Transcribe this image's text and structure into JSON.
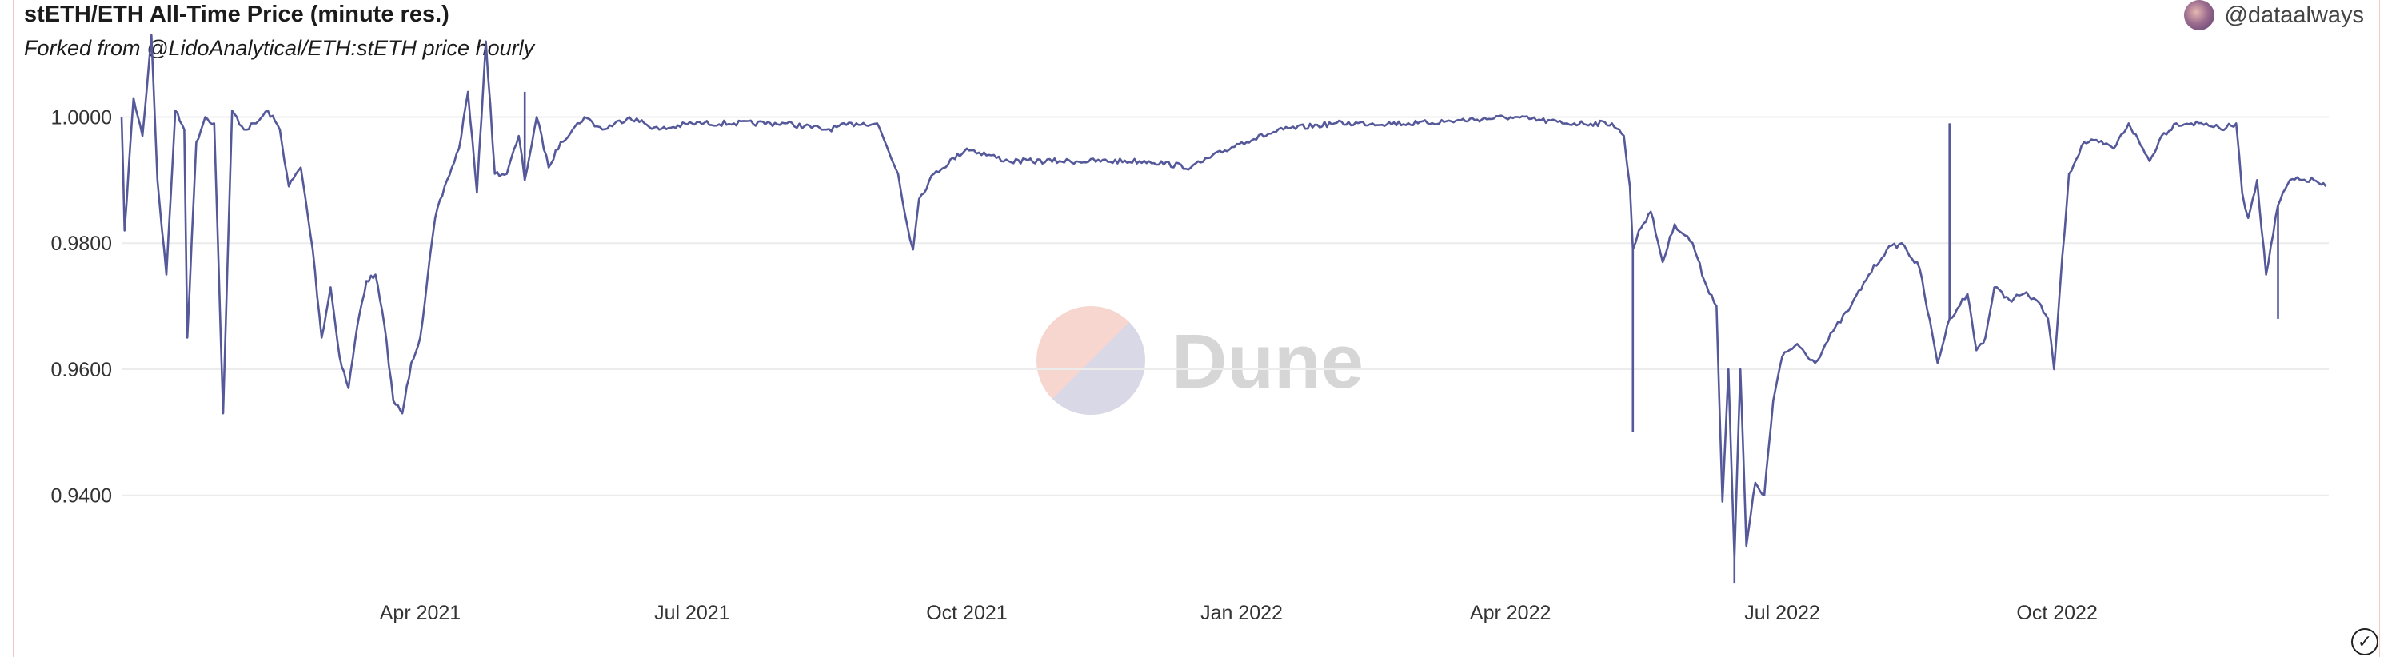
{
  "header": {
    "title": "stETH/ETH All-Time Price (minute res.)",
    "subtitle": "Forked from @LidoAnalytical/ETH:stETH price hourly",
    "user": "@dataalways"
  },
  "watermark": "Dune",
  "icons": {
    "avatar": "user-avatar",
    "status": "check-circle-icon"
  },
  "colors": {
    "line": "#55599a",
    "grid": "#ececec",
    "watermark_top": "#f6d6cf",
    "watermark_bottom": "#d8d8e6"
  },
  "chart_data": {
    "type": "line",
    "title": "stETH/ETH All-Time Price (minute res.)",
    "xlabel": "",
    "ylabel": "",
    "xlim": [
      "2020-12-22",
      "2022-12-31"
    ],
    "ylim": [
      0.925,
      1.0135
    ],
    "grid": true,
    "legend": "none",
    "y_ticks": [
      {
        "value": 0.94,
        "label": "0.9400"
      },
      {
        "value": 0.96,
        "label": "0.9600"
      },
      {
        "value": 0.98,
        "label": "0.9800"
      },
      {
        "value": 1.0,
        "label": "1.0000"
      }
    ],
    "x_ticks": [
      {
        "date": "2021-04-01",
        "label": "Apr 2021"
      },
      {
        "date": "2021-07-01",
        "label": "Jul 2021"
      },
      {
        "date": "2021-10-01",
        "label": "Oct 2021"
      },
      {
        "date": "2022-01-01",
        "label": "Jan 2022"
      },
      {
        "date": "2022-04-01",
        "label": "Apr 2022"
      },
      {
        "date": "2022-07-01",
        "label": "Jul 2022"
      },
      {
        "date": "2022-10-01",
        "label": "Oct 2022"
      }
    ],
    "series": [
      {
        "x": [
          "2020-12-22",
          "2020-12-23",
          "2020-12-26",
          "2020-12-29",
          "2021-01-01",
          "2021-01-03",
          "2021-01-06",
          "2021-01-09",
          "2021-01-12",
          "2021-01-13",
          "2021-01-16",
          "2021-01-19",
          "2021-01-22",
          "2021-01-25",
          "2021-01-28",
          "2021-02-01",
          "2021-02-05",
          "2021-02-09",
          "2021-02-13",
          "2021-02-16",
          "2021-02-20",
          "2021-02-24",
          "2021-02-27",
          "2021-03-02",
          "2021-03-05",
          "2021-03-08",
          "2021-03-11",
          "2021-03-14",
          "2021-03-17",
          "2021-03-20",
          "2021-03-23",
          "2021-03-26",
          "2021-03-29",
          "2021-04-01",
          "2021-04-06",
          "2021-04-10",
          "2021-04-14",
          "2021-04-17",
          "2021-04-20",
          "2021-04-23",
          "2021-04-26",
          "2021-04-30",
          "2021-05-04",
          "2021-05-06",
          "2021-05-10",
          "2021-05-14",
          "2021-05-18",
          "2021-05-22",
          "2021-05-26",
          "2021-06-01",
          "2021-06-10",
          "2021-06-20",
          "2021-07-01",
          "2021-07-15",
          "2021-08-01",
          "2021-08-15",
          "2021-08-25",
          "2021-09-01",
          "2021-09-08",
          "2021-09-11",
          "2021-09-13",
          "2021-09-15",
          "2021-09-20",
          "2021-10-01",
          "2021-10-15",
          "2021-11-01",
          "2021-12-01",
          "2021-12-15",
          "2022-01-01",
          "2022-01-15",
          "2022-02-01",
          "2022-03-01",
          "2022-04-01",
          "2022-04-20",
          "2022-05-05",
          "2022-05-09",
          "2022-05-11",
          "2022-05-12",
          "2022-05-14",
          "2022-05-18",
          "2022-05-22",
          "2022-05-26",
          "2022-06-01",
          "2022-06-05",
          "2022-06-09",
          "2022-06-11",
          "2022-06-13",
          "2022-06-15",
          "2022-06-17",
          "2022-06-19",
          "2022-06-22",
          "2022-06-25",
          "2022-06-28",
          "2022-07-01",
          "2022-07-06",
          "2022-07-12",
          "2022-07-18",
          "2022-07-24",
          "2022-07-30",
          "2022-08-05",
          "2022-08-10",
          "2022-08-16",
          "2022-08-22",
          "2022-08-26",
          "2022-09-01",
          "2022-09-04",
          "2022-09-07",
          "2022-09-10",
          "2022-09-15",
          "2022-09-20",
          "2022-09-24",
          "2022-09-28",
          "2022-09-30",
          "2022-10-02",
          "2022-10-05",
          "2022-10-10",
          "2022-10-15",
          "2022-10-20",
          "2022-10-25",
          "2022-11-01",
          "2022-11-05",
          "2022-11-10",
          "2022-11-15",
          "2022-11-20",
          "2022-11-25",
          "2022-11-30",
          "2022-12-02",
          "2022-12-04",
          "2022-12-07",
          "2022-12-10",
          "2022-12-14",
          "2022-12-18",
          "2022-12-22",
          "2022-12-26",
          "2022-12-30"
        ],
        "y": [
          1.0,
          0.982,
          1.003,
          0.997,
          1.013,
          0.99,
          0.975,
          1.001,
          0.998,
          0.965,
          0.996,
          1.0,
          0.999,
          0.953,
          1.001,
          0.998,
          0.999,
          1.001,
          0.998,
          0.989,
          0.992,
          0.979,
          0.965,
          0.973,
          0.962,
          0.957,
          0.967,
          0.974,
          0.975,
          0.967,
          0.955,
          0.953,
          0.961,
          0.965,
          0.984,
          0.99,
          0.995,
          1.004,
          0.988,
          1.012,
          0.991,
          0.991,
          0.997,
          0.99,
          1.0,
          0.992,
          0.996,
          0.998,
          1.0,
          0.998,
          1.0,
          0.998,
          0.999,
          0.999,
          0.999,
          0.998,
          0.999,
          0.999,
          0.991,
          0.983,
          0.979,
          0.987,
          0.991,
          0.995,
          0.993,
          0.993,
          0.993,
          0.992,
          0.996,
          0.998,
          0.999,
          0.999,
          1.0,
          0.999,
          0.999,
          0.997,
          0.989,
          0.979,
          0.982,
          0.985,
          0.977,
          0.983,
          0.98,
          0.974,
          0.97,
          0.939,
          0.96,
          0.93,
          0.96,
          0.932,
          0.942,
          0.94,
          0.955,
          0.962,
          0.964,
          0.961,
          0.966,
          0.97,
          0.975,
          0.979,
          0.98,
          0.976,
          0.961,
          0.968,
          0.972,
          0.963,
          0.965,
          0.973,
          0.971,
          0.972,
          0.971,
          0.968,
          0.96,
          0.973,
          0.991,
          0.996,
          0.996,
          0.995,
          0.999,
          0.993,
          0.997,
          0.999,
          0.999,
          0.999,
          0.998,
          0.999,
          0.988,
          0.984,
          0.99,
          0.975,
          0.986,
          0.99,
          0.99,
          0.99,
          0.989
        ],
        "spikes": [
          {
            "date": "2021-01-25",
            "value": 0.953
          },
          {
            "date": "2021-03-26",
            "value": 0.953
          },
          {
            "date": "2021-05-06",
            "value": 1.004
          },
          {
            "date": "2022-05-12",
            "value": 0.95
          },
          {
            "date": "2022-06-15",
            "value": 0.926
          },
          {
            "date": "2022-08-26",
            "value": 0.999
          },
          {
            "date": "2022-12-14",
            "value": 0.968
          }
        ]
      }
    ]
  }
}
